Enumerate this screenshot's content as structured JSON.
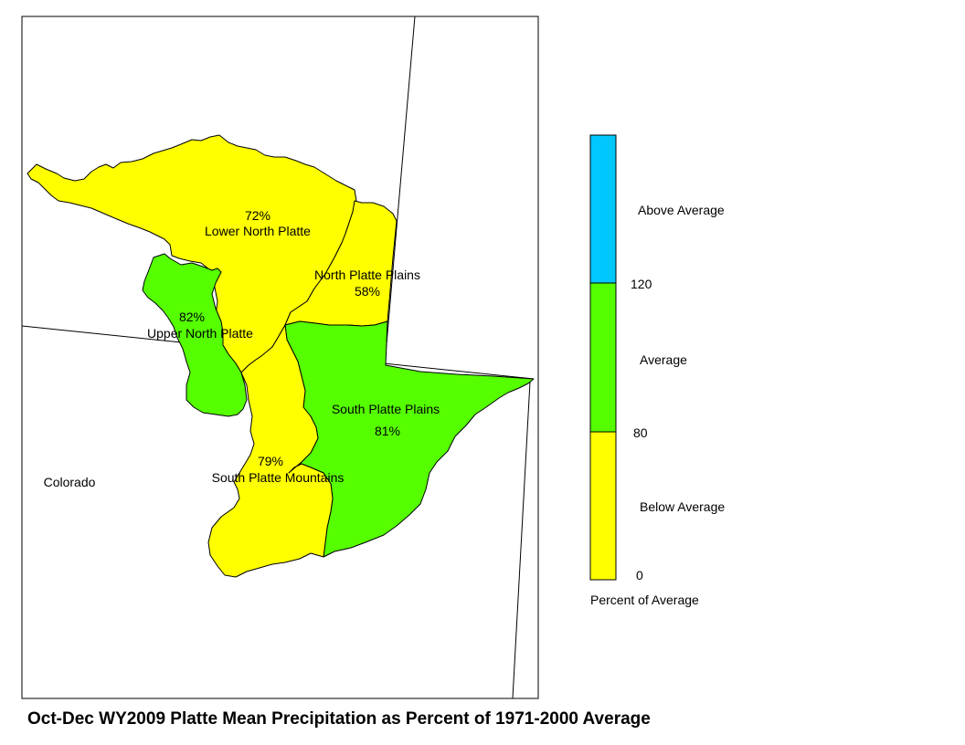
{
  "title": "Oct-Dec WY2009 Platte Mean Precipitation as Percent of 1971-2000 Average",
  "state_label": "Colorado",
  "colors": {
    "below": "#ffff00",
    "average": "#55ff00",
    "above": "#00c8ff",
    "border": "#000000"
  },
  "basins": [
    {
      "id": "lower-north-platte",
      "name": "Lower North Platte",
      "percent": "72%",
      "category": "below"
    },
    {
      "id": "north-platte-plains",
      "name": "North Platte Plains",
      "percent": "58%",
      "category": "below"
    },
    {
      "id": "upper-north-platte",
      "name": "Upper North Platte",
      "percent": "82%",
      "category": "average"
    },
    {
      "id": "south-platte-plains",
      "name": "South Platte Plains",
      "percent": "81%",
      "category": "average"
    },
    {
      "id": "south-platte-mountains",
      "name": "South Platte Mountains",
      "percent": "79%",
      "category": "below"
    }
  ],
  "legend": {
    "caption": "Percent of Average",
    "classes": [
      {
        "label": "Above Average",
        "min": 120,
        "max": null,
        "category": "above"
      },
      {
        "label": "Average",
        "min": 80,
        "max": 120,
        "category": "average"
      },
      {
        "label": "Below Average",
        "min": 0,
        "max": 80,
        "category": "below"
      }
    ],
    "ticks": [
      "120",
      "80",
      "0"
    ]
  }
}
